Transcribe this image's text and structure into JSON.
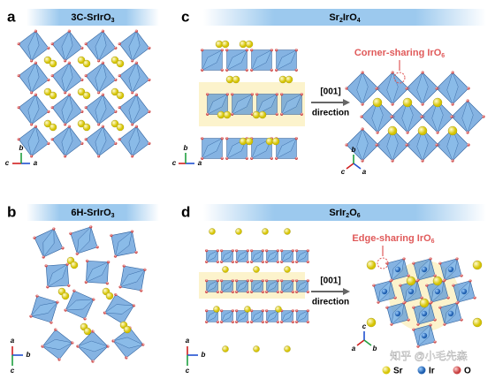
{
  "panels": [
    {
      "letter": "a",
      "title": [
        "3C-SrIrO",
        "3"
      ],
      "axis_labels": [
        "c",
        "a",
        "b"
      ]
    },
    {
      "letter": "b",
      "title": [
        "6H-SrIrO",
        "3"
      ],
      "axis_labels": [
        "a",
        "b",
        "c"
      ]
    },
    {
      "letter": "c",
      "title": [
        "Sr",
        "2",
        "IrO",
        "4"
      ],
      "axis_labels": [
        "c",
        "a",
        "b"
      ],
      "projection": {
        "arrow_label": "[001]",
        "arrow_caption": "direction",
        "axis_labels": [
          "c",
          "a",
          "b"
        ]
      },
      "callout": [
        "Corner-sharing IrO",
        "6"
      ]
    },
    {
      "letter": "d",
      "title": [
        "SrIr",
        "2",
        "O",
        "6"
      ],
      "axis_labels": [
        "a",
        "b",
        "c"
      ],
      "projection": {
        "arrow_label": "[001]",
        "arrow_caption": "direction",
        "axis_labels": [
          "a",
          "c",
          "b"
        ]
      },
      "callout": [
        "Edge-sharing IrO",
        "6"
      ]
    }
  ],
  "legend": [
    "Sr",
    "Ir",
    "O"
  ],
  "watermark": "知乎 @小毛先森"
}
